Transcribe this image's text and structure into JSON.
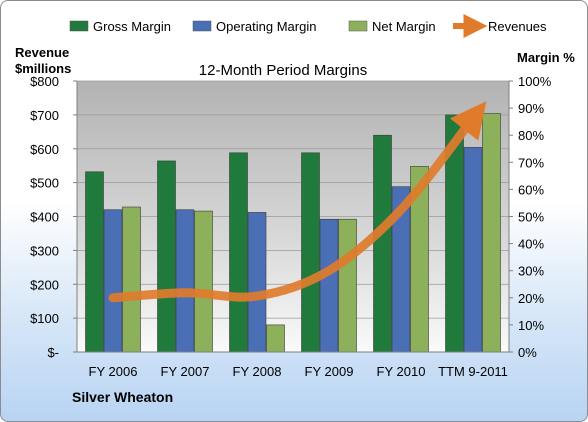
{
  "chart_data": {
    "type": "bar",
    "title": "12-Month Period Margins",
    "company": "Silver Wheaton",
    "y_left_title": [
      "Revenue",
      "$millions"
    ],
    "y_right_title": "Margin %",
    "categories": [
      "FY 2006",
      "FY 2007",
      "FY 2008",
      "FY 2009",
      "FY 2010",
      "TTM 9-2011"
    ],
    "left_ticks": [
      "$-",
      "$100",
      "$200",
      "$300",
      "$400",
      "$500",
      "$600",
      "$700",
      "$800"
    ],
    "right_ticks": [
      "0%",
      "10%",
      "20%",
      "30%",
      "40%",
      "50%",
      "60%",
      "70%",
      "80%",
      "90%",
      "100%"
    ],
    "ylim_left": [
      0,
      800
    ],
    "ylim_right": [
      0,
      100
    ],
    "grid": true,
    "legend_position": "top",
    "series": [
      {
        "name": "Gross Margin",
        "axis": "right",
        "color": "#1f7a3c",
        "values": [
          66.5,
          70.5,
          73.5,
          73.5,
          80,
          87.5
        ]
      },
      {
        "name": "Operating Margin",
        "axis": "right",
        "color": "#4a6fb5",
        "values": [
          52.5,
          52.5,
          51.5,
          49,
          61,
          75.5
        ]
      },
      {
        "name": "Net Margin",
        "axis": "right",
        "color": "#8db15a",
        "values": [
          53.5,
          52,
          10,
          49,
          68.5,
          88
        ]
      },
      {
        "name": "Revenues",
        "axis": "left",
        "type": "line",
        "color": "#e07b2c",
        "values": [
          160,
          175,
          165,
          240,
          420,
          690
        ]
      }
    ]
  }
}
